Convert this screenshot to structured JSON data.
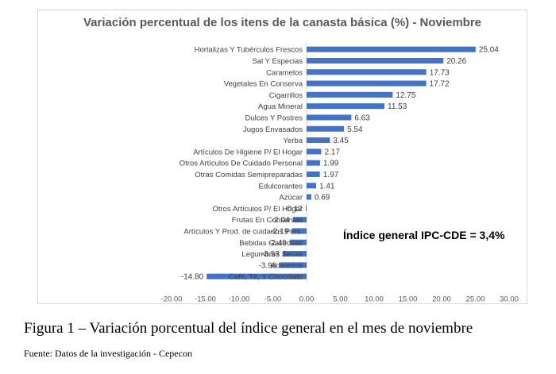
{
  "chart_data": {
    "type": "bar",
    "orientation": "horizontal",
    "title": "Variación percentual de los itens de la canasta básica (%) - Noviembre",
    "categories": [
      "Hortalizas Y Tubérculos Frescos",
      "Sal Y Especias",
      "Caramelos",
      "Vegetales En Conserva",
      "Cigarrillos",
      "Agua Mineral",
      "Dulces Y Postres",
      "Jugos Envasados",
      "Yerba",
      "Artículos De Higiene P/ El Hogar",
      "Otros Artículos De Cuidado Personal",
      "Otras Comidas Semipreparadas",
      "Edulcorantes",
      "Azúcar",
      "Otros Artículos P/ El Hogar",
      "Frutas En Conservas",
      "Artículos Y Prod. de cuidados Pers.",
      "Bebidas Gaseosas",
      "Legumbres Secas",
      "Aderezos",
      "Café, Té, Y Chocolate"
    ],
    "values": [
      25.04,
      20.26,
      17.73,
      17.72,
      12.75,
      11.53,
      6.63,
      5.54,
      3.45,
      2.17,
      1.99,
      1.97,
      1.41,
      0.69,
      -0.12,
      -2.04,
      -2.19,
      -2.49,
      -3.53,
      -3.98,
      -14.8
    ],
    "value_labels": [
      "25.04",
      "20.26",
      "17.73",
      "17.72",
      "12.75",
      "11.53",
      "6.63",
      "5.54",
      "3.45",
      "2.17",
      "1.99",
      "1.97",
      "1.41",
      "0.69",
      "-0.12",
      "-2.04",
      "-2.19",
      "-2.49",
      "-3.53",
      "-3.98",
      "-14.80"
    ],
    "xlim": [
      -20,
      30
    ],
    "xticks": [
      -20,
      -15,
      -10,
      -5,
      0,
      5,
      10,
      15,
      20,
      25,
      30
    ],
    "xtick_labels": [
      "-20.00",
      "-15.00",
      "-10.00",
      "-5.00",
      "0.00",
      "5.00",
      "10.00",
      "15.00",
      "20.00",
      "25.00",
      "30.00"
    ],
    "bar_color": "#4472c4",
    "grid": false,
    "legend": "none"
  },
  "annotation": "Índice general IPC-CDE = 3,4%",
  "caption": "Figura 1 – Variación porcentual del índice general en el mes de noviembre",
  "source": "Fuente: Datos de la investigación - Cepecon"
}
